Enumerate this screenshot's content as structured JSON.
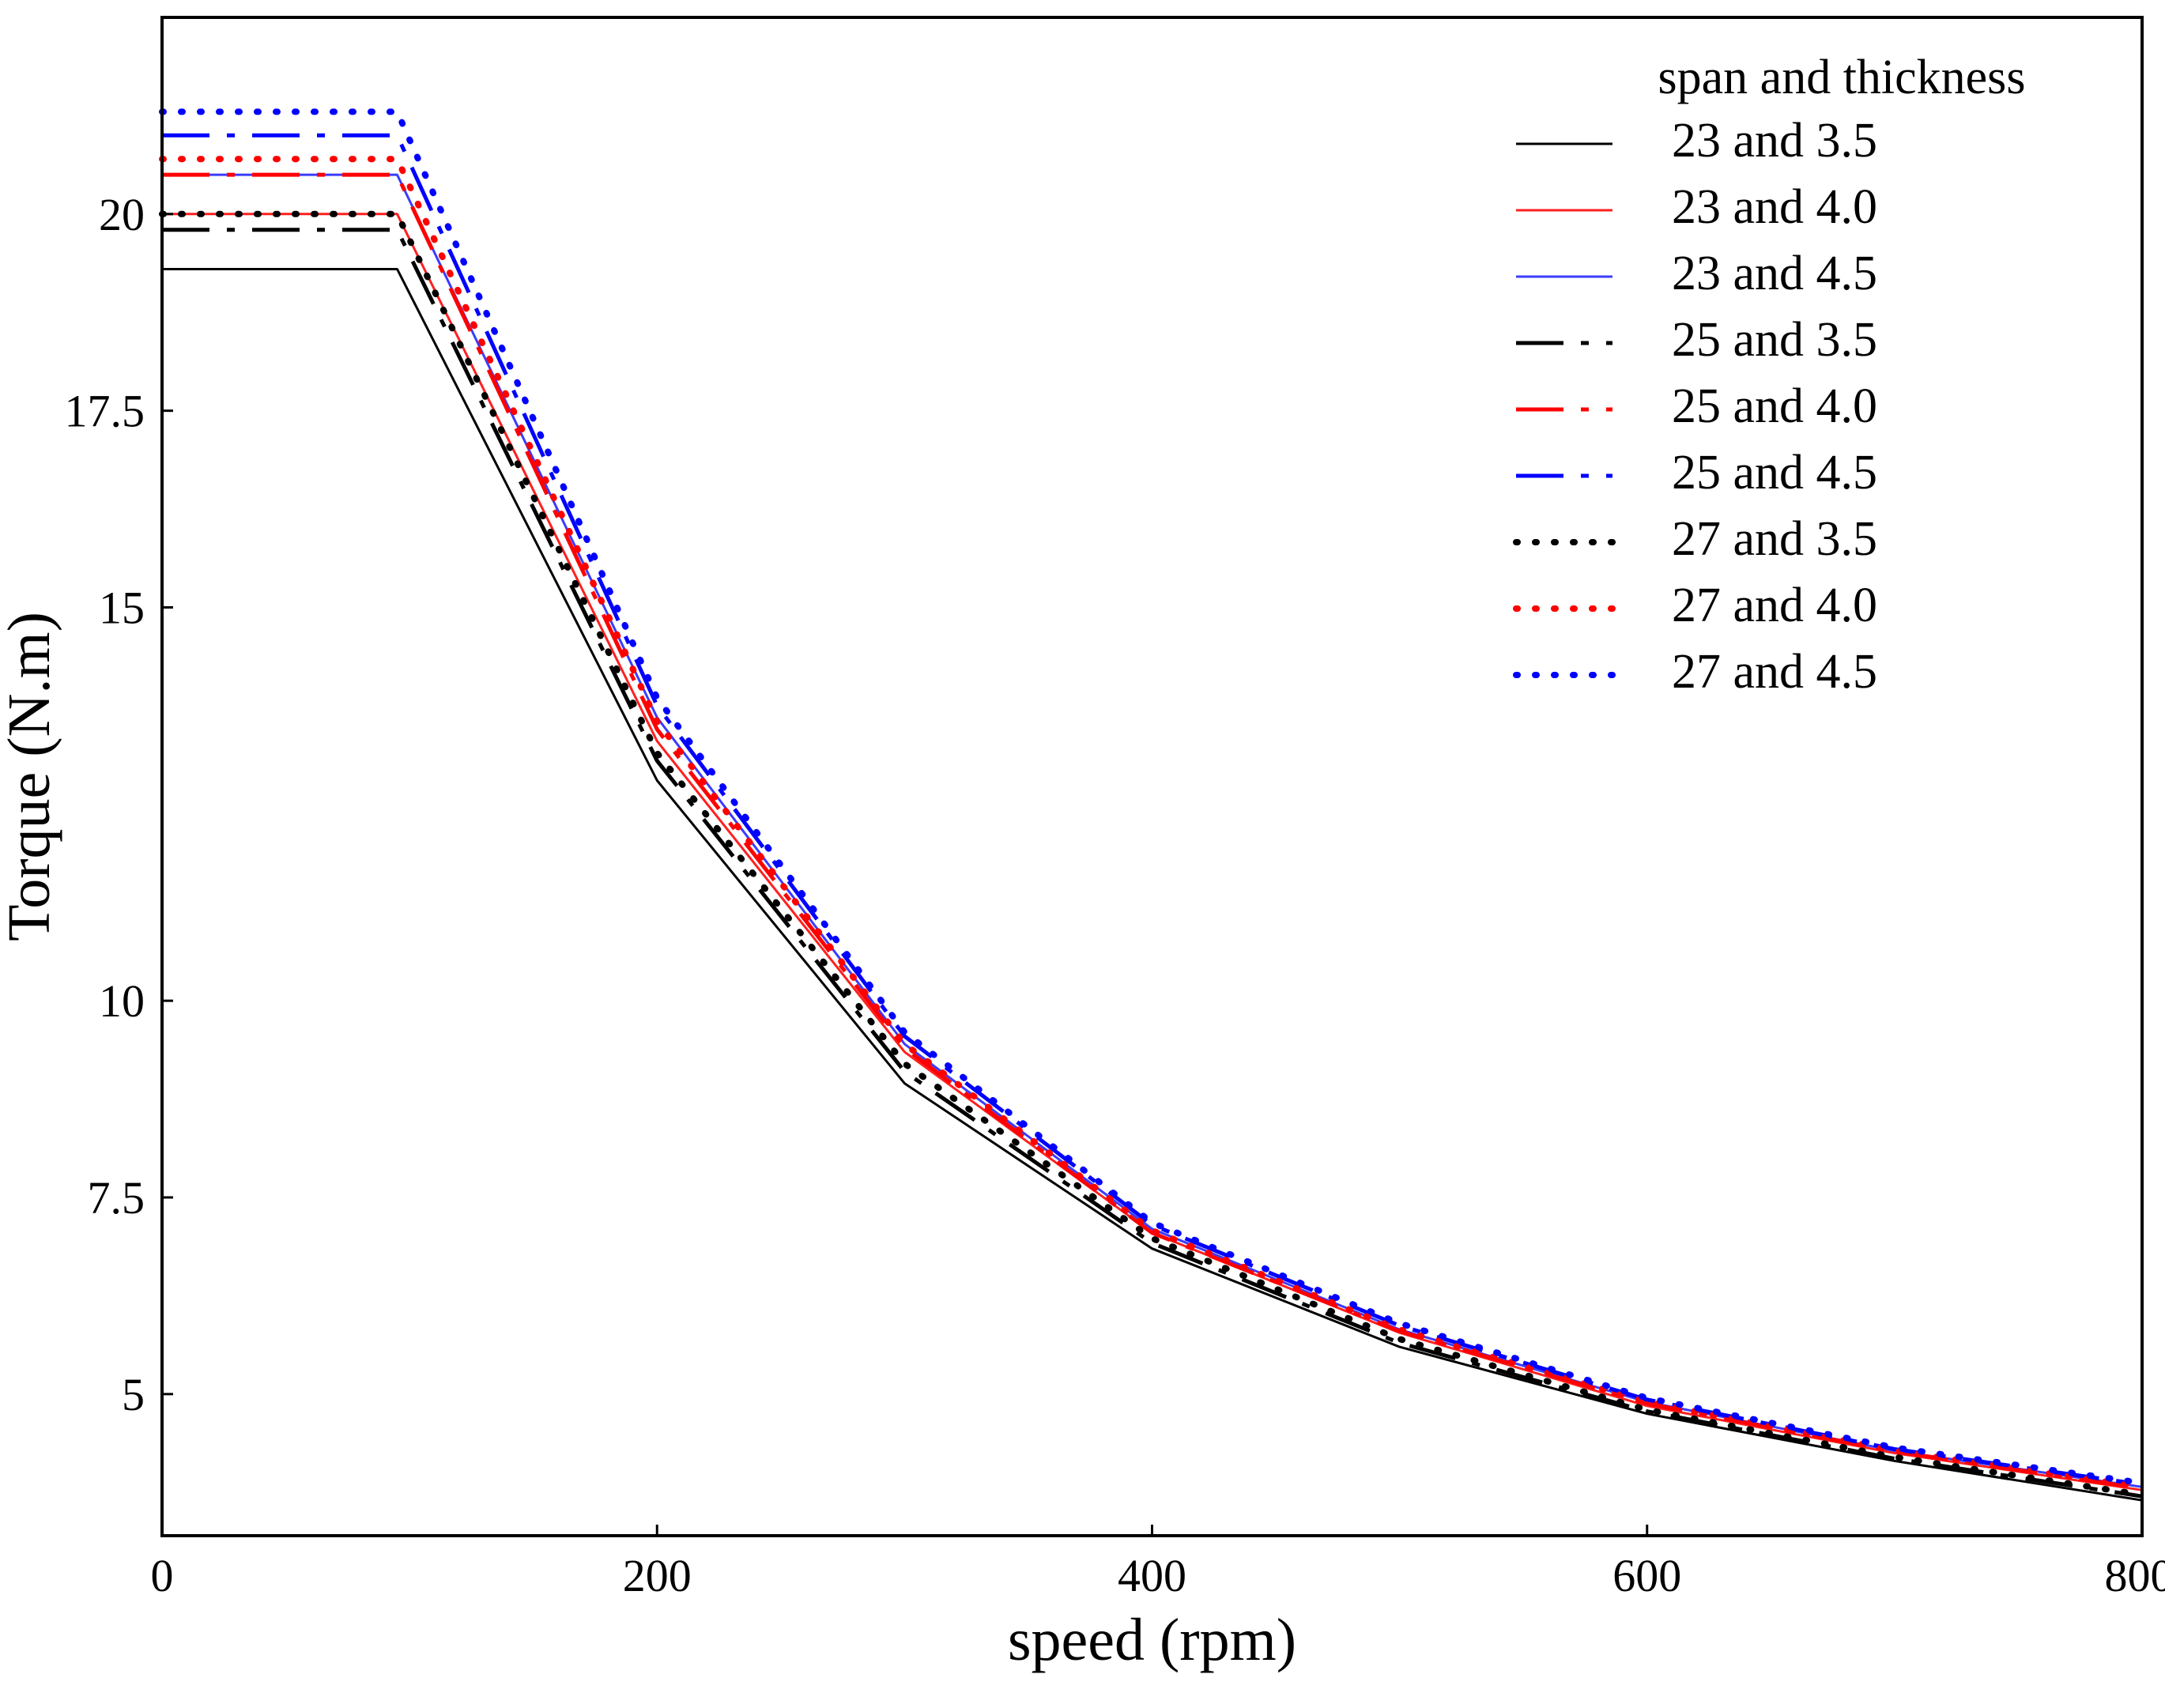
{
  "chart_data": {
    "type": "line",
    "title": "",
    "xlabel": "speed (rpm)",
    "ylabel": "Torque (N.m)",
    "xlim": [
      0,
      800
    ],
    "ylim": [
      3.2,
      22.5
    ],
    "x_ticks": [
      0,
      200,
      400,
      600,
      800
    ],
    "x_tick_labels": [
      "0",
      "200",
      "400",
      "600",
      "800"
    ],
    "y_ticks": [
      5,
      7.5,
      10,
      15,
      17.5,
      20
    ],
    "y_tick_labels": [
      "5",
      "7.5",
      "10",
      "15",
      "17.5",
      "20"
    ],
    "grid": false,
    "legend": {
      "title": "span and thickness",
      "position": "top-right"
    },
    "x": [
      0,
      95,
      200,
      300,
      400,
      500,
      600,
      700,
      800
    ],
    "series": [
      {
        "name": "23 and 3.5",
        "color": "#000000",
        "style": "solid",
        "values": [
          19.3,
          19.3,
          12.8,
          8.95,
          6.85,
          5.6,
          4.75,
          4.15,
          3.65
        ]
      },
      {
        "name": "23 and 4.0",
        "color": "#ff2020",
        "style": "solid",
        "values": [
          20.0,
          20.0,
          13.3,
          9.35,
          7.05,
          5.78,
          4.85,
          4.25,
          3.78
        ]
      },
      {
        "name": "23 and 4.5",
        "color": "#3b3bff",
        "style": "solid",
        "values": [
          20.5,
          20.5,
          13.6,
          9.45,
          7.1,
          5.82,
          4.9,
          4.28,
          3.82
        ]
      },
      {
        "name": "25 and 3.5",
        "color": "#000000",
        "style": "dash",
        "values": [
          19.8,
          19.8,
          13.05,
          9.1,
          6.92,
          5.65,
          4.78,
          4.18,
          3.7
        ]
      },
      {
        "name": "25 and 4.0",
        "color": "#ff0000",
        "style": "dash",
        "values": [
          20.5,
          20.5,
          13.45,
          9.4,
          7.05,
          5.8,
          4.88,
          4.27,
          3.8
        ]
      },
      {
        "name": "25 and 4.5",
        "color": "#0000ff",
        "style": "dash",
        "values": [
          21.0,
          21.0,
          13.75,
          9.55,
          7.15,
          5.87,
          4.93,
          4.3,
          3.85
        ]
      },
      {
        "name": "27 and 3.5",
        "color": "#000000",
        "style": "dot",
        "values": [
          20.0,
          20.0,
          13.15,
          9.2,
          6.98,
          5.7,
          4.8,
          4.2,
          3.72
        ]
      },
      {
        "name": "27 and 4.0",
        "color": "#ff0000",
        "style": "dot",
        "values": [
          20.7,
          20.7,
          13.55,
          9.45,
          7.08,
          5.82,
          4.9,
          4.28,
          3.82
        ]
      },
      {
        "name": "27 and 4.5",
        "color": "#0000ff",
        "style": "dot",
        "values": [
          21.3,
          21.3,
          13.85,
          9.6,
          7.18,
          5.9,
          4.95,
          4.32,
          3.87
        ]
      }
    ]
  }
}
